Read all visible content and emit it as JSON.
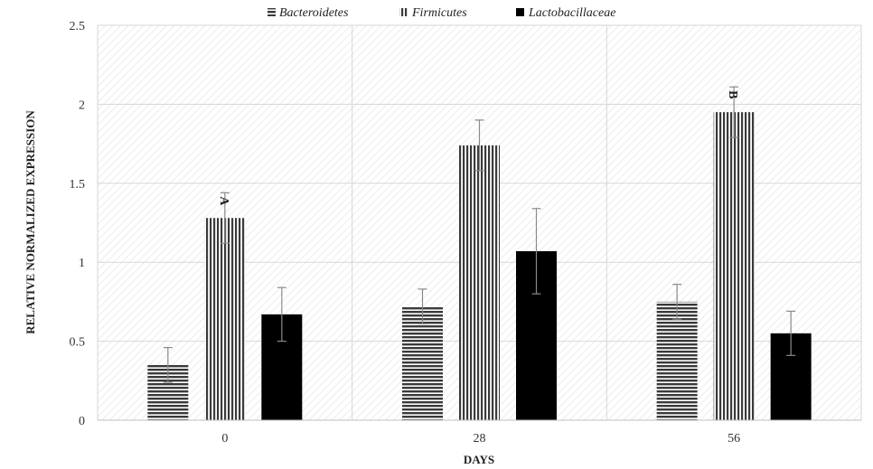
{
  "chart_data": {
    "type": "bar",
    "title": "",
    "xlabel": "DAYS",
    "ylabel": "RELATIVE NORMALIZED EXPRESSION",
    "categories": [
      "0",
      "28",
      "56"
    ],
    "ylim": [
      0,
      2.5
    ],
    "yticks": [
      "0",
      "0.5",
      "1",
      "1.5",
      "2",
      "2.5"
    ],
    "grid": true,
    "legend_position": "top",
    "series": [
      {
        "name": "Bacteroidetes",
        "pattern": "horizontal-stripes",
        "color": "#3a3a3a",
        "values": [
          0.35,
          0.72,
          0.75
        ],
        "errors": [
          0.11,
          0.11,
          0.11
        ]
      },
      {
        "name": "Firmicutes",
        "pattern": "vertical-stripes",
        "color": "#3a3a3a",
        "values": [
          1.28,
          1.74,
          1.95
        ],
        "errors": [
          0.16,
          0.16,
          0.16
        ]
      },
      {
        "name": "Lactobacillaceae",
        "pattern": "solid",
        "color": "#000000",
        "values": [
          0.67,
          1.07,
          0.55
        ],
        "errors": [
          0.17,
          0.27,
          0.14
        ]
      }
    ],
    "annotations": [
      {
        "text": "A",
        "category": "0",
        "series": "Firmicutes"
      },
      {
        "text": "B",
        "category": "56",
        "series": "Firmicutes"
      }
    ]
  }
}
